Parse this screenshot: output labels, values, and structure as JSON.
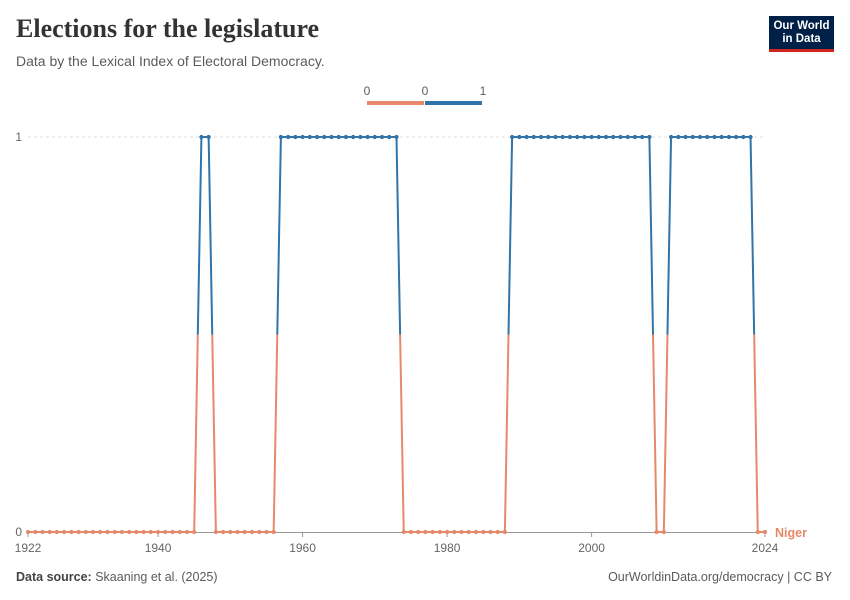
{
  "header": {
    "title": "Elections for the legislature",
    "subtitle": "Data by the Lexical Index of Electoral Democracy."
  },
  "logo": {
    "line1": "Our World",
    "line2": "in Data"
  },
  "footer": {
    "source_label": "Data source:",
    "source_value": "Skaaning et al. (2025)",
    "link": "OurWorldinData.org/democracy | CC BY"
  },
  "colors": {
    "low": "#e6896b",
    "high": "#3274a8",
    "grid": "#dddddd",
    "axis": "#666666",
    "text": "#5b5b5b"
  },
  "chart_data": {
    "type": "line",
    "title": "Elections for the legislature",
    "subtitle": "Data by the Lexical Index of Electoral Democracy.",
    "xlabel": "",
    "ylabel": "",
    "xlim": [
      1922,
      2024
    ],
    "ylim": [
      0,
      1
    ],
    "x_ticks": [
      1922,
      1940,
      1960,
      1980,
      2000,
      2024
    ],
    "y_ticks": [
      0,
      1
    ],
    "grid": "horizontal dashed",
    "legend": {
      "placement": "top-center",
      "segments": [
        {
          "label_start": "0",
          "label_end": "0",
          "color": "#e6896b"
        },
        {
          "label_start": "0",
          "label_end": "1",
          "color": "#3274a8"
        }
      ]
    },
    "series": [
      {
        "name": "Niger",
        "x": [
          1922,
          1923,
          1924,
          1925,
          1926,
          1927,
          1928,
          1929,
          1930,
          1931,
          1932,
          1933,
          1934,
          1935,
          1936,
          1937,
          1938,
          1939,
          1940,
          1941,
          1942,
          1943,
          1944,
          1945,
          1946,
          1947,
          1948,
          1949,
          1950,
          1951,
          1952,
          1953,
          1954,
          1955,
          1956,
          1957,
          1958,
          1959,
          1960,
          1961,
          1962,
          1963,
          1964,
          1965,
          1966,
          1967,
          1968,
          1969,
          1970,
          1971,
          1972,
          1973,
          1974,
          1975,
          1976,
          1977,
          1978,
          1979,
          1980,
          1981,
          1982,
          1983,
          1984,
          1985,
          1986,
          1987,
          1988,
          1989,
          1990,
          1991,
          1992,
          1993,
          1994,
          1995,
          1996,
          1997,
          1998,
          1999,
          2000,
          2001,
          2002,
          2003,
          2004,
          2005,
          2006,
          2007,
          2008,
          2009,
          2010,
          2011,
          2012,
          2013,
          2014,
          2015,
          2016,
          2017,
          2018,
          2019,
          2020,
          2021,
          2022,
          2023,
          2024
        ],
        "values": [
          0,
          0,
          0,
          0,
          0,
          0,
          0,
          0,
          0,
          0,
          0,
          0,
          0,
          0,
          0,
          0,
          0,
          0,
          0,
          0,
          0,
          0,
          0,
          0,
          1,
          1,
          0,
          0,
          0,
          0,
          0,
          0,
          0,
          0,
          0,
          1,
          1,
          1,
          1,
          1,
          1,
          1,
          1,
          1,
          1,
          1,
          1,
          1,
          1,
          1,
          1,
          1,
          0,
          0,
          0,
          0,
          0,
          0,
          0,
          0,
          0,
          0,
          0,
          0,
          0,
          0,
          0,
          1,
          1,
          1,
          1,
          1,
          1,
          1,
          1,
          1,
          1,
          1,
          1,
          1,
          1,
          1,
          1,
          1,
          1,
          1,
          1,
          0,
          0,
          1,
          1,
          1,
          1,
          1,
          1,
          1,
          1,
          1,
          1,
          1,
          1,
          0,
          0
        ]
      }
    ]
  }
}
